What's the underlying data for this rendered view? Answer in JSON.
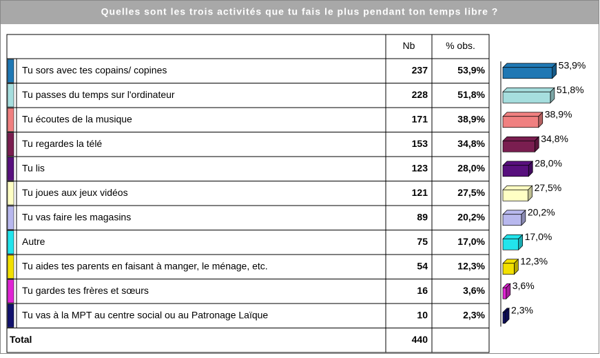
{
  "chart_data": {
    "type": "bar",
    "title": "Quelles sont les trois activités que tu fais le plus pendant ton temps libre ?",
    "columns": [
      "Nb",
      "% obs."
    ],
    "categories": [
      "Tu sors avec tes copains/ copines",
      "Tu passes du temps sur l'ordinateur",
      "Tu écoutes de la musique",
      "Tu regardes la télé",
      "Tu lis",
      "Tu joues aux jeux vidéos",
      "Tu vas faire les magasins",
      "Autre",
      "Tu aides tes parents en faisant à manger, le ménage, etc.",
      "Tu gardes tes frères et sœurs",
      "Tu vas à la MPT au centre social ou au Patronage Laïque"
    ],
    "counts": [
      237,
      228,
      171,
      153,
      123,
      121,
      89,
      75,
      54,
      16,
      10
    ],
    "values": [
      53.9,
      51.8,
      38.9,
      34.8,
      28.0,
      27.5,
      20.2,
      17.0,
      12.3,
      3.6,
      2.3
    ],
    "value_labels": [
      "53,9%",
      "51,8%",
      "38,9%",
      "34,8%",
      "28,0%",
      "27,5%",
      "20,2%",
      "17,0%",
      "12,3%",
      "3,6%",
      "2,3%"
    ],
    "colors": [
      "#1f78b4",
      "#a6dede",
      "#f08080",
      "#7a1e50",
      "#58107e",
      "#ffffc4",
      "#b8b8ee",
      "#22e4ec",
      "#f2e000",
      "#e024d4",
      "#12126e"
    ],
    "total_label": "Total",
    "total": 440
  }
}
